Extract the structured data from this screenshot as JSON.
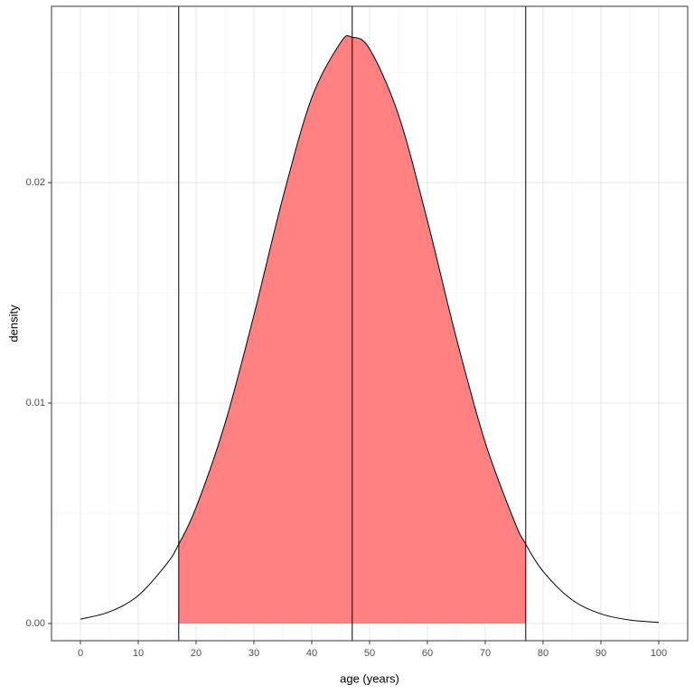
{
  "chart_data": {
    "type": "density",
    "x_label": "age (years)",
    "y_label": "density",
    "x": [
      0,
      5,
      10,
      15,
      17,
      20,
      25,
      30,
      35,
      40,
      45,
      47,
      50,
      55,
      60,
      65,
      70,
      75,
      77,
      80,
      85,
      90,
      95,
      100
    ],
    "values": [
      0.000196,
      0.000528,
      0.001269,
      0.002732,
      0.003599,
      0.005263,
      0.009072,
      0.013994,
      0.019313,
      0.023852,
      0.026361,
      0.026596,
      0.026069,
      0.023071,
      0.018268,
      0.012946,
      0.008209,
      0.004659,
      0.003599,
      0.002365,
      0.001074,
      0.000437,
      0.000159,
      5.18e-05
    ],
    "line_color": "#000000",
    "fill_range": [
      17,
      77
    ],
    "fill_color": "#ff8080",
    "vlines": [
      17,
      47,
      77
    ],
    "xlim": [
      -5,
      105
    ],
    "ylim": [
      -0.00078,
      0.028
    ],
    "xticks": [
      0,
      10,
      20,
      30,
      40,
      50,
      60,
      70,
      80,
      90,
      100
    ],
    "yticks": [
      {
        "value": 0,
        "label": "0.00"
      },
      {
        "value": 0.01,
        "label": "0.01"
      },
      {
        "value": 0.02,
        "label": "0.02"
      }
    ],
    "grid": true
  }
}
